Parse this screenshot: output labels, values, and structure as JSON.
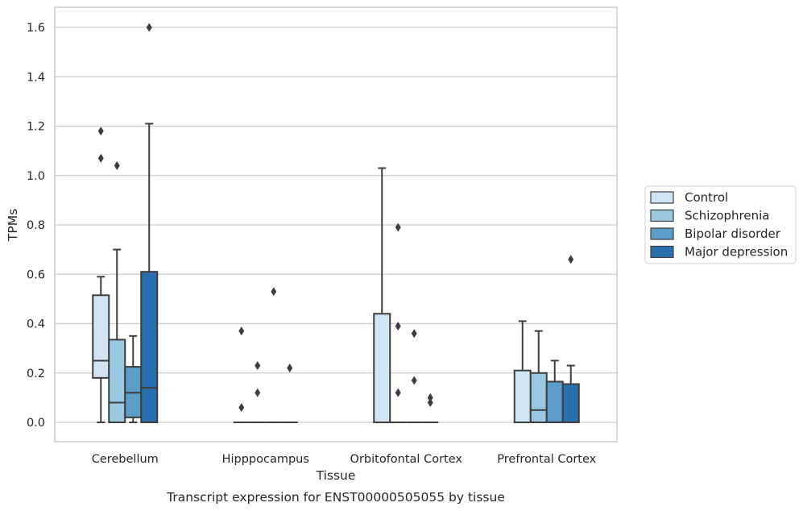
{
  "chart_data": {
    "type": "box",
    "title": "",
    "caption": "Transcript expression for ENST00000505055 by tissue",
    "xlabel": "Tissue",
    "ylabel": "TPMs",
    "ylim": [
      -0.08,
      1.68
    ],
    "yticks": [
      0.0,
      0.2,
      0.4,
      0.6,
      0.8,
      1.0,
      1.2,
      1.4,
      1.6
    ],
    "ytick_labels": [
      "0.0",
      "0.2",
      "0.4",
      "0.6",
      "0.8",
      "1.0",
      "1.2",
      "1.4",
      "1.6"
    ],
    "grid": "horizontal",
    "legend_position": "right",
    "categories": [
      "Cerebellum",
      "Hipppocampus",
      "Orbitofontal Cortex",
      "Prefrontal Cortex"
    ],
    "series": [
      {
        "name": "Control",
        "color": "#d2e3f3",
        "boxes": [
          {
            "whislo": 0.0,
            "q1": 0.18,
            "med": 0.25,
            "q3": 0.515,
            "whishi": 0.59,
            "fliers": [
              1.07,
              1.18
            ]
          },
          {
            "whislo": 0.0,
            "q1": 0.0,
            "med": 0.0,
            "q3": 0.0,
            "whishi": 0.0,
            "fliers": [
              0.06,
              0.37
            ]
          },
          {
            "whislo": 0.0,
            "q1": 0.0,
            "med": 0.0,
            "q3": 0.44,
            "whishi": 1.03,
            "fliers": []
          },
          {
            "whislo": 0.0,
            "q1": 0.0,
            "med": 0.0,
            "q3": 0.21,
            "whishi": 0.41,
            "fliers": []
          }
        ]
      },
      {
        "name": "Schizophrenia",
        "color": "#9ac8e0",
        "boxes": [
          {
            "whislo": 0.0,
            "q1": 0.0,
            "med": 0.08,
            "q3": 0.335,
            "whishi": 0.7,
            "fliers": [
              1.04
            ]
          },
          {
            "whislo": 0.0,
            "q1": 0.0,
            "med": 0.0,
            "q3": 0.0,
            "whishi": 0.0,
            "fliers": [
              0.12,
              0.23
            ]
          },
          {
            "whislo": 0.0,
            "q1": 0.0,
            "med": 0.0,
            "q3": 0.0,
            "whishi": 0.0,
            "fliers": [
              0.12,
              0.39,
              0.79
            ]
          },
          {
            "whislo": 0.0,
            "q1": 0.0,
            "med": 0.05,
            "q3": 0.2,
            "whishi": 0.37,
            "fliers": []
          }
        ]
      },
      {
        "name": "Bipolar disorder",
        "color": "#5a9ec9",
        "boxes": [
          {
            "whislo": 0.0,
            "q1": 0.02,
            "med": 0.12,
            "q3": 0.225,
            "whishi": 0.35,
            "fliers": []
          },
          {
            "whislo": 0.0,
            "q1": 0.0,
            "med": 0.0,
            "q3": 0.0,
            "whishi": 0.0,
            "fliers": [
              0.53
            ]
          },
          {
            "whislo": 0.0,
            "q1": 0.0,
            "med": 0.0,
            "q3": 0.0,
            "whishi": 0.0,
            "fliers": [
              0.17,
              0.36
            ]
          },
          {
            "whislo": 0.0,
            "q1": 0.0,
            "med": 0.0,
            "q3": 0.165,
            "whishi": 0.25,
            "fliers": []
          }
        ]
      },
      {
        "name": "Major depression",
        "color": "#2a6fad",
        "boxes": [
          {
            "whislo": 0.0,
            "q1": 0.0,
            "med": 0.14,
            "q3": 0.61,
            "whishi": 1.21,
            "fliers": [
              1.6
            ]
          },
          {
            "whislo": 0.0,
            "q1": 0.0,
            "med": 0.0,
            "q3": 0.0,
            "whishi": 0.0,
            "fliers": [
              0.22
            ]
          },
          {
            "whislo": 0.0,
            "q1": 0.0,
            "med": 0.0,
            "q3": 0.0,
            "whishi": 0.0,
            "fliers": [
              0.08,
              0.1
            ]
          },
          {
            "whislo": 0.0,
            "q1": 0.0,
            "med": 0.0,
            "q3": 0.155,
            "whishi": 0.23,
            "fliers": [
              0.66
            ]
          }
        ]
      }
    ]
  }
}
